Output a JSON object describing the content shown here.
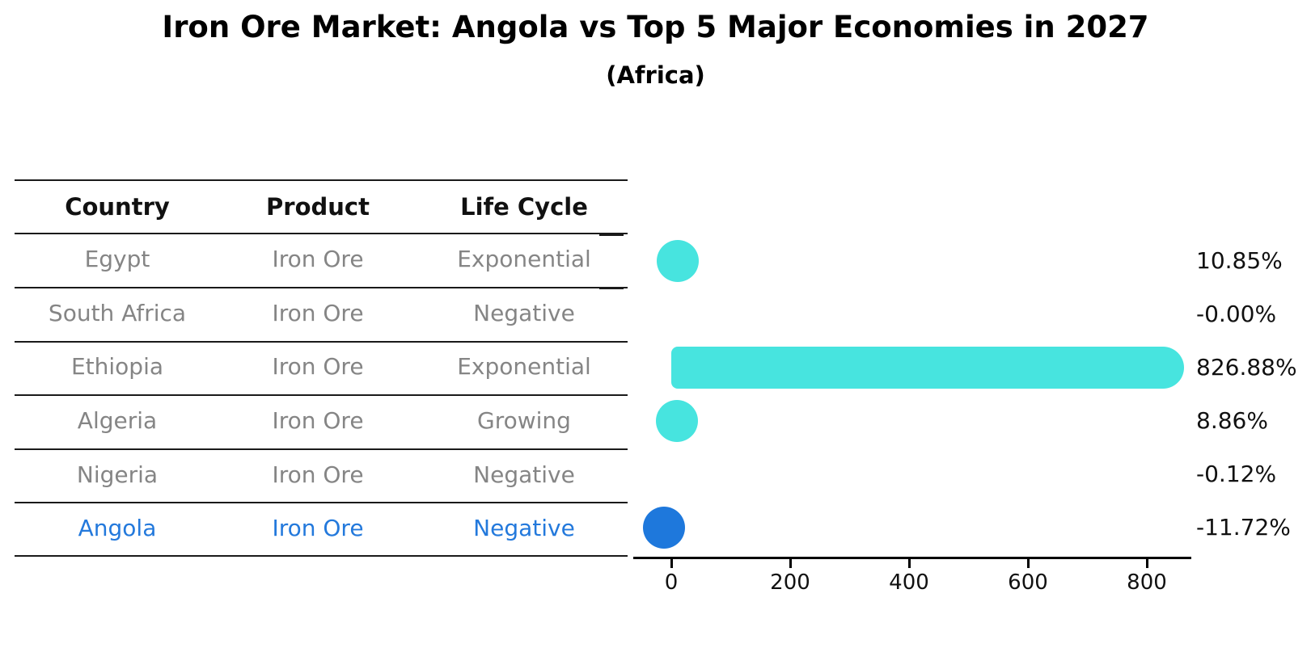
{
  "title": "Iron Ore Market: Angola vs Top 5 Major Economies in 2027",
  "subtitle": "(Africa)",
  "table": {
    "headers": [
      "Country",
      "Product",
      "Life Cycle"
    ],
    "rows": [
      {
        "country": "Egypt",
        "product": "Iron Ore",
        "life_cycle": "Exponential",
        "highlight": false
      },
      {
        "country": "South Africa",
        "product": "Iron Ore",
        "life_cycle": "Negative",
        "highlight": false
      },
      {
        "country": "Ethiopia",
        "product": "Iron Ore",
        "life_cycle": "Exponential",
        "highlight": false
      },
      {
        "country": "Algeria",
        "product": "Iron Ore",
        "life_cycle": "Growing",
        "highlight": false
      },
      {
        "country": "Nigeria",
        "product": "Iron Ore",
        "life_cycle": "Negative",
        "highlight": false
      },
      {
        "country": "Angola",
        "product": "Iron Ore",
        "life_cycle": "Negative",
        "highlight": true
      }
    ]
  },
  "chart_data": {
    "type": "bar",
    "orientation": "horizontal",
    "title": "Iron Ore Market: Angola vs Top 5 Major Economies in 2027",
    "subtitle": "(Africa)",
    "categories": [
      "Egypt",
      "South Africa",
      "Ethiopia",
      "Algeria",
      "Nigeria",
      "Angola"
    ],
    "values": [
      10.85,
      -0.0,
      826.88,
      8.86,
      -0.12,
      -11.72
    ],
    "value_labels": [
      "10.85%",
      "-0.00%",
      "826.88%",
      "8.86%",
      "-0.12%",
      "-11.72%"
    ],
    "value_unit": "%",
    "xticks": [
      "0",
      "200",
      "400",
      "600",
      "800"
    ],
    "xlim": [
      -64,
      875
    ],
    "grid": false,
    "legend": false,
    "bar_color": "#47E4DF",
    "highlight_color": "#1E78DC",
    "highlight_index": 5
  },
  "colors": {
    "bar": "#47E4DF",
    "highlight": "#1E78DC",
    "muted_text": "#858585",
    "text": "#111111"
  }
}
